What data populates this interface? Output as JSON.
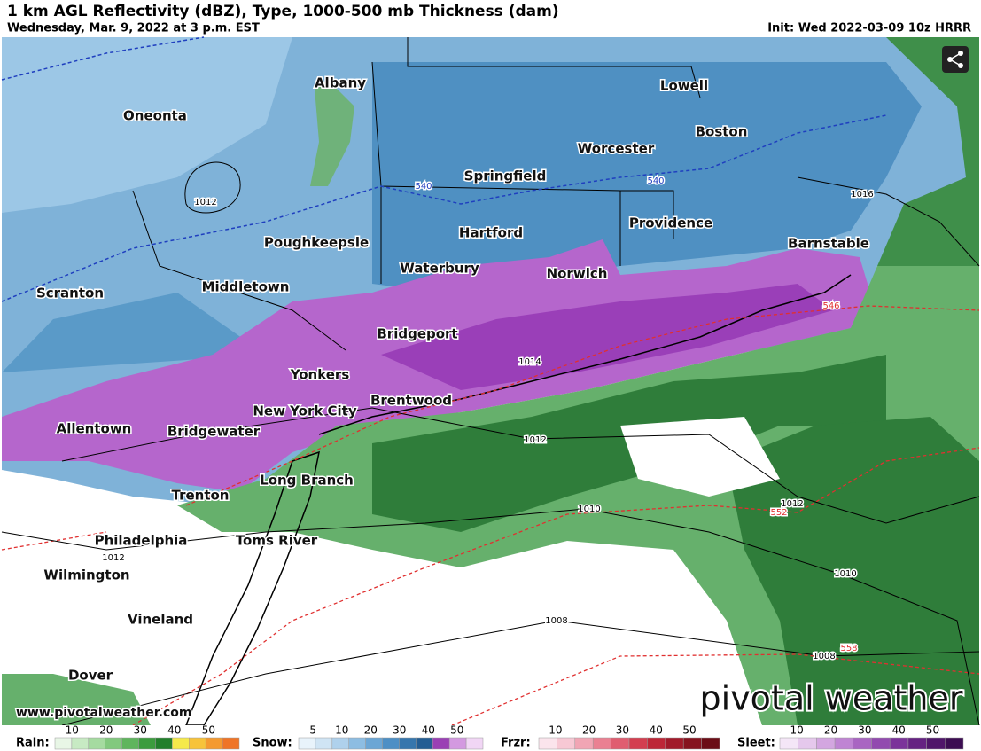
{
  "header": {
    "title": "1 km AGL Reflectivity (dBZ), Type, 1000-500 mb Thickness (dam)",
    "subtitle": "Wednesday, Mar. 9, 2022 at 3 p.m. EST",
    "init": "Init: Wed 2022-03-09 10z HRRR"
  },
  "cities": [
    "Albany",
    "Oneonta",
    "Lowell",
    "Boston",
    "Worcester",
    "Springfield",
    "Hartford",
    "Providence",
    "Poughkeepsie",
    "Barnstable",
    "Waterbury",
    "Norwich",
    "Scranton",
    "Middletown",
    "Bridgeport",
    "Yonkers",
    "Brentwood",
    "New York City",
    "Allentown",
    "Bridgewater",
    "Long Branch",
    "Trenton",
    "Philadelphia",
    "Toms River",
    "Wilmington",
    "Vineland",
    "Dover"
  ],
  "pressure_labels": [
    "1012",
    "1016",
    "1014",
    "1012",
    "1012",
    "1010",
    "1010",
    "1012",
    "1008",
    "1008"
  ],
  "thickness_labels": [
    "540",
    "540",
    "546",
    "552",
    "558"
  ],
  "watermark": "pivotal weather",
  "website": "www.pivotalweather.com",
  "legend": [
    {
      "name": "Rain:",
      "ticks": [
        "10",
        "20",
        "30",
        "40",
        "50"
      ]
    },
    {
      "name": "Snow:",
      "ticks": [
        "5",
        "10",
        "20",
        "30",
        "40",
        "50"
      ]
    },
    {
      "name": "Frzr:",
      "ticks": [
        "10",
        "20",
        "30",
        "40",
        "50"
      ]
    },
    {
      "name": "Sleet:",
      "ticks": [
        "10",
        "20",
        "30",
        "40",
        "50"
      ]
    }
  ]
}
